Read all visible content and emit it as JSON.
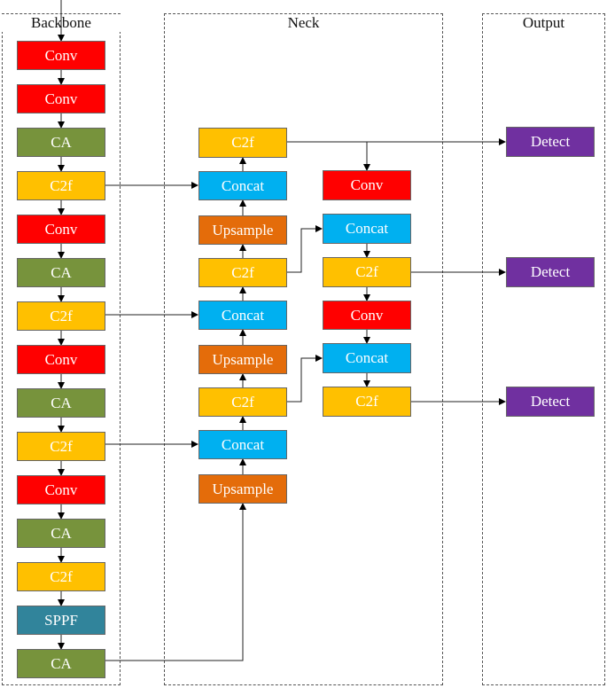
{
  "sections": {
    "backbone": "Backbone",
    "neck": "Neck",
    "output": "Output"
  },
  "blocks": {
    "b1": "Conv",
    "b2": "Conv",
    "b3": "CA",
    "b4": "C2f",
    "b5": "Conv",
    "b6": "CA",
    "b7": "C2f",
    "b8": "Conv",
    "b9": "CA",
    "b10": "C2f",
    "b11": "Conv",
    "b12": "CA",
    "b13": "C2f",
    "b14": "SPPF",
    "b15": "CA",
    "n1": "C2f",
    "n2": "Concat",
    "n3": "Upsample",
    "n4": "C2f",
    "n5": "Concat",
    "n6": "Upsample",
    "n7": "C2f",
    "n8": "Concat",
    "n9": "Upsample",
    "m1": "Conv",
    "m2": "Concat",
    "m3": "C2f",
    "m4": "Conv",
    "m5": "Concat",
    "m6": "C2f",
    "d1": "Detect",
    "d2": "Detect",
    "d3": "Detect"
  },
  "colors": {
    "conv": "#ff0000",
    "ca": "#77933c",
    "c2f": "#ffc000",
    "sppf": "#31849b",
    "concat": "#00b0f0",
    "upsample": "#e46c0a",
    "detect": "#7030a0"
  }
}
